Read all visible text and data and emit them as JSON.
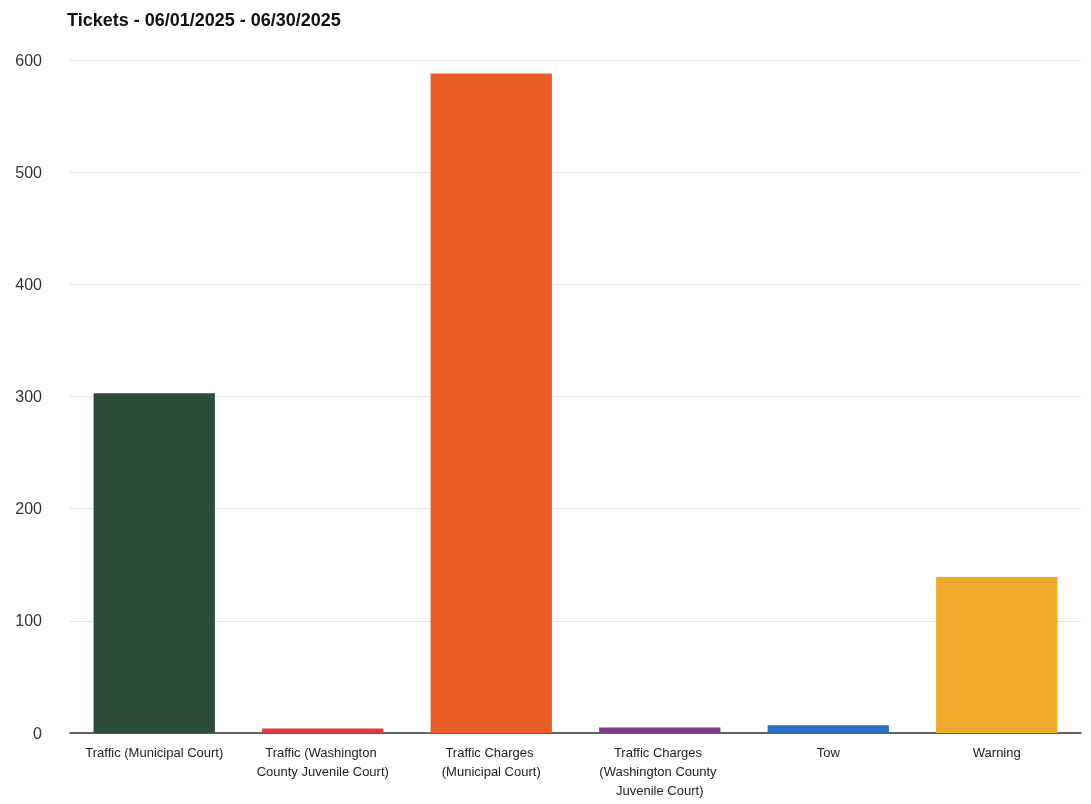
{
  "chart_data": {
    "type": "bar",
    "title": "Tickets - 06/01/2025 - 06/30/2025",
    "categories": [
      "Traffic (Municipal Court)",
      "Traffic (Washington County Juvenile Court)",
      "Traffic Charges (Municipal Court)",
      "Traffic Charges (Washington County Juvenile Court)",
      "Tow",
      "Warning"
    ],
    "values": [
      303,
      4,
      588,
      5,
      7,
      139
    ],
    "colors": [
      "#2e4d36",
      "#dd3c45",
      "#ea5d24",
      "#803c8c",
      "#2a6fc0",
      "#eeaa2a"
    ],
    "ylim": [
      0,
      600
    ],
    "yticks": [
      0,
      100,
      200,
      300,
      400,
      500,
      600
    ],
    "grid": "y"
  }
}
